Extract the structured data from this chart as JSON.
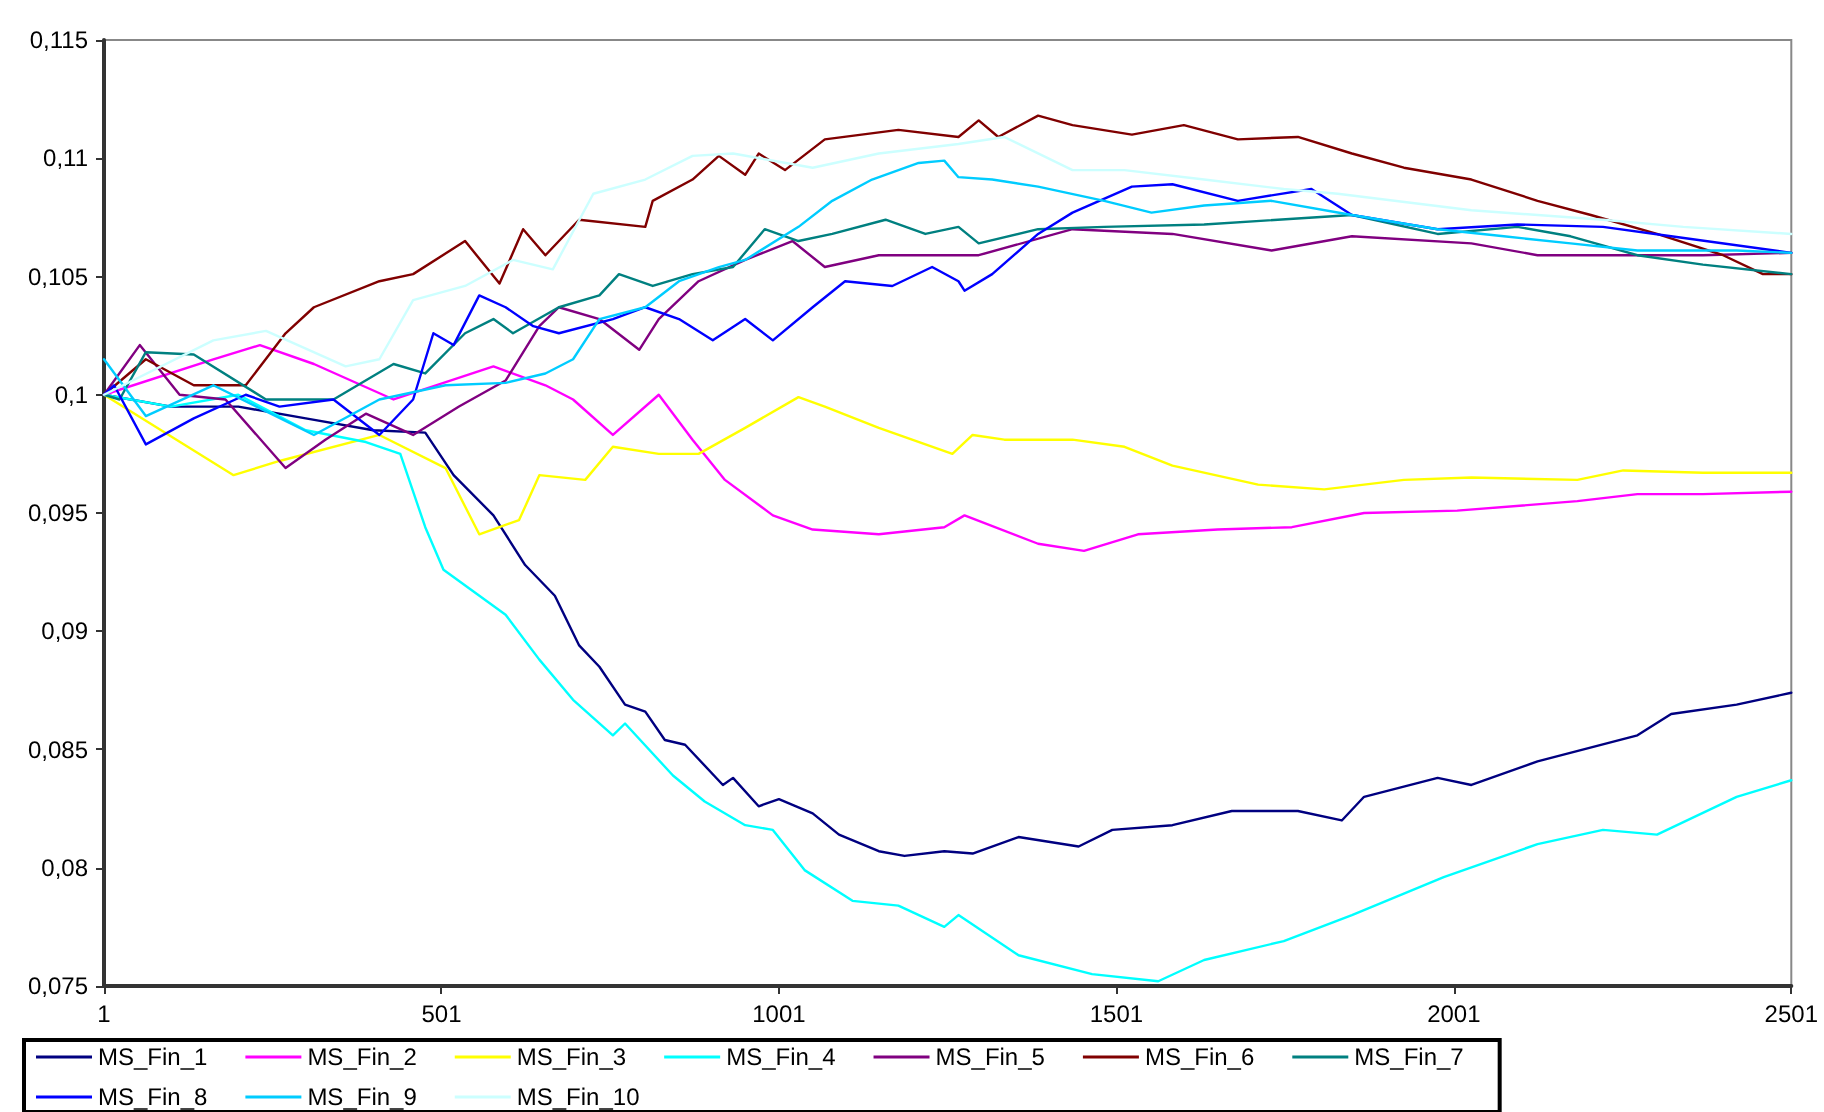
{
  "chart_data": {
    "type": "line",
    "xlim": [
      1,
      2501
    ],
    "xticks": [
      1,
      501,
      1001,
      1501,
      2001,
      2501
    ],
    "ylim": [
      0.075,
      0.115
    ],
    "yticks": [
      {
        "value": 0.075,
        "label": "0,075"
      },
      {
        "value": 0.08,
        "label": "0,08"
      },
      {
        "value": 0.085,
        "label": "0,085"
      },
      {
        "value": 0.09,
        "label": "0,09"
      },
      {
        "value": 0.095,
        "label": "0,095"
      },
      {
        "value": 0.1,
        "label": "0,1"
      },
      {
        "value": 0.105,
        "label": "0,105"
      },
      {
        "value": 0.11,
        "label": "0,11"
      },
      {
        "value": 0.115,
        "label": "0,115"
      }
    ],
    "grid": false,
    "legend": "bottom",
    "marker": "none",
    "line_style": "solid",
    "series": [
      {
        "name": "MS_Fin_1",
        "color": "#000080",
        "x": [
          1,
          100,
          200,
          300,
          400,
          477,
          519,
          578,
          625,
          669,
          705,
          735,
          773,
          803,
          832,
          862,
          918,
          933,
          971,
          1001,
          1051,
          1090,
          1149,
          1187,
          1246,
          1288,
          1356,
          1445,
          1495,
          1584,
          1672,
          1770,
          1835,
          1868,
          1977,
          2027,
          2125,
          2273,
          2323,
          2420,
          2501
        ],
        "values": [
          0.1,
          0.0995,
          0.0995,
          0.099,
          0.0985,
          0.0984,
          0.0966,
          0.0949,
          0.0928,
          0.0915,
          0.0894,
          0.0885,
          0.0869,
          0.0866,
          0.0854,
          0.0852,
          0.0835,
          0.0838,
          0.0826,
          0.0829,
          0.0823,
          0.0814,
          0.0807,
          0.0805,
          0.0807,
          0.0806,
          0.0813,
          0.0809,
          0.0816,
          0.0818,
          0.0824,
          0.0824,
          0.082,
          0.083,
          0.0838,
          0.0835,
          0.0845,
          0.0856,
          0.0865,
          0.0869,
          0.0874
        ]
      },
      {
        "name": "MS_Fin_2",
        "color": "#ff00ff",
        "x": [
          1,
          163,
          232,
          312,
          430,
          578,
          655,
          696,
          755,
          823,
          873,
          921,
          992,
          1051,
          1149,
          1246,
          1276,
          1385,
          1453,
          1533,
          1651,
          1761,
          1868,
          2006,
          2184,
          2273,
          2370,
          2501
        ],
        "values": [
          0.1,
          0.1015,
          0.1021,
          0.1013,
          0.0998,
          0.1012,
          0.1004,
          0.0998,
          0.0983,
          0.1,
          0.0981,
          0.0964,
          0.0949,
          0.0943,
          0.0941,
          0.0944,
          0.0949,
          0.0937,
          0.0934,
          0.0941,
          0.0943,
          0.0944,
          0.095,
          0.0951,
          0.0955,
          0.0958,
          0.0958,
          0.0959
        ]
      },
      {
        "name": "MS_Fin_3",
        "color": "#ffff00",
        "x": [
          1,
          193,
          261,
          409,
          507,
          557,
          616,
          646,
          714,
          755,
          823,
          882,
          951,
          1030,
          1069,
          1149,
          1258,
          1288,
          1335,
          1436,
          1513,
          1584,
          1711,
          1809,
          1927,
          2027,
          2184,
          2252,
          2370,
          2501
        ],
        "values": [
          0.1,
          0.0966,
          0.0972,
          0.0983,
          0.0969,
          0.0941,
          0.0947,
          0.0966,
          0.0964,
          0.0978,
          0.0975,
          0.0975,
          0.0986,
          0.0999,
          0.0995,
          0.0986,
          0.0975,
          0.0983,
          0.0981,
          0.0981,
          0.0978,
          0.097,
          0.0962,
          0.096,
          0.0964,
          0.0965,
          0.0964,
          0.0968,
          0.0967,
          0.0967
        ]
      },
      {
        "name": "MS_Fin_4",
        "color": "#00ffff",
        "x": [
          1,
          100,
          200,
          300,
          389,
          440,
          477,
          504,
          596,
          646,
          696,
          755,
          773,
          844,
          891,
          951,
          992,
          1039,
          1110,
          1178,
          1246,
          1267,
          1356,
          1465,
          1563,
          1631,
          1749,
          1850,
          1986,
          2125,
          2222,
          2302,
          2420,
          2501
        ],
        "values": [
          0.1,
          0.0995,
          0.1,
          0.0985,
          0.098,
          0.0975,
          0.0944,
          0.0926,
          0.0907,
          0.0888,
          0.0871,
          0.0856,
          0.0861,
          0.0839,
          0.0828,
          0.0818,
          0.0816,
          0.0799,
          0.0786,
          0.0784,
          0.0775,
          0.078,
          0.0763,
          0.0755,
          0.0752,
          0.0761,
          0.0769,
          0.078,
          0.0796,
          0.081,
          0.0816,
          0.0814,
          0.083,
          0.0837
        ]
      },
      {
        "name": "MS_Fin_5",
        "color": "#800080",
        "x": [
          1,
          54,
          113,
          181,
          270,
          329,
          389,
          459,
          527,
          596,
          646,
          675,
          735,
          794,
          823,
          882,
          951,
          1021,
          1069,
          1149,
          1218,
          1297,
          1436,
          1584,
          1731,
          1850,
          2027,
          2125,
          2273,
          2370,
          2501
        ],
        "values": [
          0.1,
          0.1021,
          0.1,
          0.0998,
          0.0969,
          0.0981,
          0.0992,
          0.0983,
          0.0995,
          0.1006,
          0.1029,
          0.1037,
          0.1032,
          0.1019,
          0.1032,
          0.1048,
          0.1057,
          0.1065,
          0.1054,
          0.1059,
          0.1059,
          0.1059,
          0.107,
          0.1068,
          0.1061,
          0.1067,
          0.1064,
          0.1059,
          0.1059,
          0.1059,
          0.106
        ]
      },
      {
        "name": "MS_Fin_6",
        "color": "#800000",
        "x": [
          1,
          63,
          134,
          211,
          270,
          312,
          409,
          459,
          536,
          587,
          622,
          655,
          705,
          803,
          814,
          873,
          912,
          951,
          971,
          1010,
          1069,
          1178,
          1267,
          1297,
          1326,
          1385,
          1436,
          1524,
          1601,
          1681,
          1770,
          1850,
          1927,
          2027,
          2125,
          2204,
          2302,
          2400,
          2459,
          2501
        ],
        "values": [
          0.1,
          0.1015,
          0.1004,
          0.1004,
          0.1026,
          0.1037,
          0.1048,
          0.1051,
          0.1065,
          0.1047,
          0.107,
          0.1059,
          0.1074,
          0.1071,
          0.1082,
          0.1091,
          0.1101,
          0.1093,
          0.1102,
          0.1095,
          0.1108,
          0.1112,
          0.1109,
          0.1116,
          0.1109,
          0.1118,
          0.1114,
          0.111,
          0.1114,
          0.1108,
          0.1109,
          0.1102,
          0.1096,
          0.1091,
          0.1082,
          0.1076,
          0.1068,
          0.1059,
          0.1051,
          0.1051
        ]
      },
      {
        "name": "MS_Fin_7",
        "color": "#008080",
        "x": [
          1,
          24,
          63,
          134,
          241,
          341,
          430,
          477,
          536,
          578,
          607,
          675,
          735,
          764,
          814,
          873,
          933,
          980,
          1030,
          1080,
          1159,
          1218,
          1267,
          1297,
          1385,
          1483,
          1631,
          1850,
          1977,
          2095,
          2174,
          2273,
          2370,
          2501
        ],
        "values": [
          0.1,
          0.0998,
          0.1018,
          0.1017,
          0.0998,
          0.0998,
          0.1013,
          0.1009,
          0.1026,
          0.1032,
          0.1026,
          0.1037,
          0.1042,
          0.1051,
          0.1046,
          0.1051,
          0.1054,
          0.107,
          0.1065,
          0.1068,
          0.1074,
          0.1068,
          0.1071,
          0.1064,
          0.107,
          0.1071,
          0.1072,
          0.1076,
          0.1068,
          0.1071,
          0.1067,
          0.1059,
          0.1055,
          0.1051
        ]
      },
      {
        "name": "MS_Fin_8",
        "color": "#0000ff",
        "x": [
          1,
          16,
          63,
          134,
          211,
          261,
          341,
          409,
          459,
          489,
          519,
          557,
          596,
          637,
          675,
          755,
          803,
          853,
          903,
          951,
          992,
          1051,
          1099,
          1169,
          1228,
          1267,
          1276,
          1317,
          1385,
          1436,
          1524,
          1584,
          1681,
          1790,
          1850,
          1977,
          2095,
          2222,
          2323,
          2501
        ],
        "values": [
          0.1,
          0.1004,
          0.0979,
          0.099,
          0.1,
          0.0995,
          0.0998,
          0.0983,
          0.0998,
          0.1026,
          0.1021,
          0.1042,
          0.1037,
          0.1029,
          0.1026,
          0.1032,
          0.1037,
          0.1032,
          0.1023,
          0.1032,
          0.1023,
          0.1037,
          0.1048,
          0.1046,
          0.1054,
          0.1048,
          0.1044,
          0.1051,
          0.1068,
          0.1077,
          0.1088,
          0.1089,
          0.1082,
          0.1087,
          0.1076,
          0.107,
          0.1072,
          0.1071,
          0.1067,
          0.106
        ]
      },
      {
        "name": "MS_Fin_9",
        "color": "#00ccff",
        "x": [
          1,
          63,
          163,
          312,
          409,
          507,
          596,
          655,
          696,
          735,
          803,
          853,
          912,
          951,
          1030,
          1080,
          1139,
          1208,
          1246,
          1267,
          1317,
          1385,
          1483,
          1553,
          1631,
          1731,
          1850,
          1977,
          2075,
          2174,
          2273,
          2420,
          2501
        ],
        "values": [
          0.1015,
          0.0991,
          0.1004,
          0.0983,
          0.0998,
          0.1004,
          0.1005,
          0.1009,
          0.1015,
          0.1032,
          0.1037,
          0.1048,
          0.1054,
          0.1057,
          0.1071,
          0.1082,
          0.1091,
          0.1098,
          0.1099,
          0.1092,
          0.1091,
          0.1088,
          0.1082,
          0.1077,
          0.108,
          0.1082,
          0.1076,
          0.107,
          0.1067,
          0.1064,
          0.1061,
          0.1061,
          0.106
        ]
      },
      {
        "name": "MS_Fin_10",
        "color": "#ccffff",
        "x": [
          1,
          163,
          241,
          359,
          409,
          459,
          536,
          607,
          666,
          726,
          803,
          873,
          933,
          1051,
          1149,
          1267,
          1335,
          1436,
          1513,
          1631,
          1749,
          1829,
          2027,
          2222,
          2341,
          2501
        ],
        "values": [
          0.1,
          0.1023,
          0.1027,
          0.1012,
          0.1015,
          0.104,
          0.1046,
          0.1057,
          0.1053,
          0.1085,
          0.1091,
          0.1101,
          0.1102,
          0.1096,
          0.1102,
          0.1106,
          0.1109,
          0.1095,
          0.1095,
          0.1091,
          0.1087,
          0.1085,
          0.1078,
          0.1074,
          0.1071,
          0.1068
        ]
      }
    ]
  }
}
